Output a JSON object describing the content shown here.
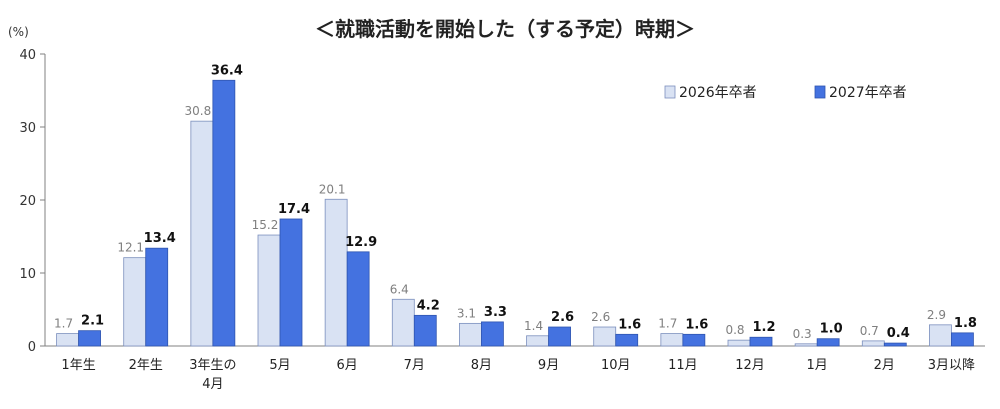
{
  "chart_data": {
    "type": "bar",
    "title": "＜就職活動を開始した（する予定）時期＞",
    "ylabel": "(%)",
    "xlabel": "",
    "ylim": [
      0,
      40
    ],
    "yticks": [
      0,
      10,
      20,
      30,
      40
    ],
    "grid": false,
    "legend_position": "top-right",
    "categories": [
      [
        "1年生"
      ],
      [
        "2年生"
      ],
      [
        "3年生の",
        "4月"
      ],
      [
        "5月"
      ],
      [
        "6月"
      ],
      [
        "7月"
      ],
      [
        "8月"
      ],
      [
        "9月"
      ],
      [
        "10月"
      ],
      [
        "11月"
      ],
      [
        "12月"
      ],
      [
        "1月"
      ],
      [
        "2月"
      ],
      [
        "3月以降"
      ]
    ],
    "series": [
      {
        "name": "2026年卒者",
        "color": "#d9e2f3",
        "stroke": "#7b8fbd",
        "values": [
          1.7,
          12.1,
          30.8,
          15.2,
          20.1,
          6.4,
          3.1,
          1.4,
          2.6,
          1.7,
          0.8,
          0.3,
          0.7,
          2.9
        ]
      },
      {
        "name": "2027年卒者",
        "color": "#4472e0",
        "stroke": "#2f55b0",
        "values": [
          2.1,
          13.4,
          36.4,
          17.4,
          12.9,
          4.2,
          3.3,
          2.6,
          1.6,
          1.6,
          1.2,
          1.0,
          0.4,
          1.8
        ]
      }
    ]
  }
}
